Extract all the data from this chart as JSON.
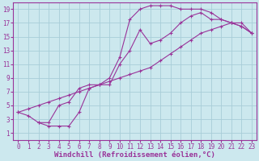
{
  "title": "Windchill (Refroidissement éolien,°C)",
  "bg_color": "#cce8ee",
  "grid_color": "#a8cdd8",
  "line_color": "#993399",
  "xlim": [
    -0.5,
    23.5
  ],
  "ylim": [
    0,
    20
  ],
  "xticks": [
    0,
    1,
    2,
    3,
    4,
    5,
    6,
    7,
    8,
    9,
    10,
    11,
    12,
    13,
    14,
    15,
    16,
    17,
    18,
    19,
    20,
    21,
    22,
    23
  ],
  "yticks": [
    1,
    3,
    5,
    7,
    9,
    11,
    13,
    15,
    17,
    19
  ],
  "curve1_x": [
    0,
    1,
    2,
    3,
    4,
    5,
    6,
    7,
    8,
    9,
    10,
    11,
    12,
    13,
    14,
    15,
    16,
    17,
    18,
    19,
    20,
    21,
    22,
    23
  ],
  "curve1_y": [
    4,
    3.5,
    2.5,
    2.5,
    5,
    5.5,
    7.5,
    8,
    8,
    9,
    12,
    17.5,
    19,
    19.5,
    19.5,
    19.5,
    19,
    19,
    19,
    18.5,
    17.5,
    17,
    16.5,
    15.5
  ],
  "curve2_x": [
    2,
    3,
    4,
    5,
    6,
    7,
    8,
    9,
    10,
    11,
    12,
    13,
    14,
    15,
    16,
    17,
    18,
    19,
    20,
    21,
    22,
    23
  ],
  "curve2_y": [
    2.5,
    2,
    2,
    2,
    4,
    7.5,
    8,
    8,
    11,
    13,
    16,
    14,
    14.5,
    15.5,
    17,
    18,
    18.5,
    17.5,
    17.5,
    17,
    16.5,
    15.5
  ],
  "curve3_x": [
    0,
    1,
    2,
    3,
    4,
    5,
    6,
    7,
    8,
    9,
    10,
    11,
    12,
    13,
    14,
    15,
    16,
    17,
    18,
    19,
    20,
    21,
    22,
    23
  ],
  "curve3_y": [
    4,
    4.5,
    5,
    5.5,
    6,
    6.5,
    7,
    7.5,
    8,
    8.5,
    9,
    9.5,
    10,
    10.5,
    11.5,
    12.5,
    13.5,
    14.5,
    15.5,
    16,
    16.5,
    17,
    17,
    15.5
  ],
  "font_size_ticks": 5.5,
  "font_size_label": 6.5
}
